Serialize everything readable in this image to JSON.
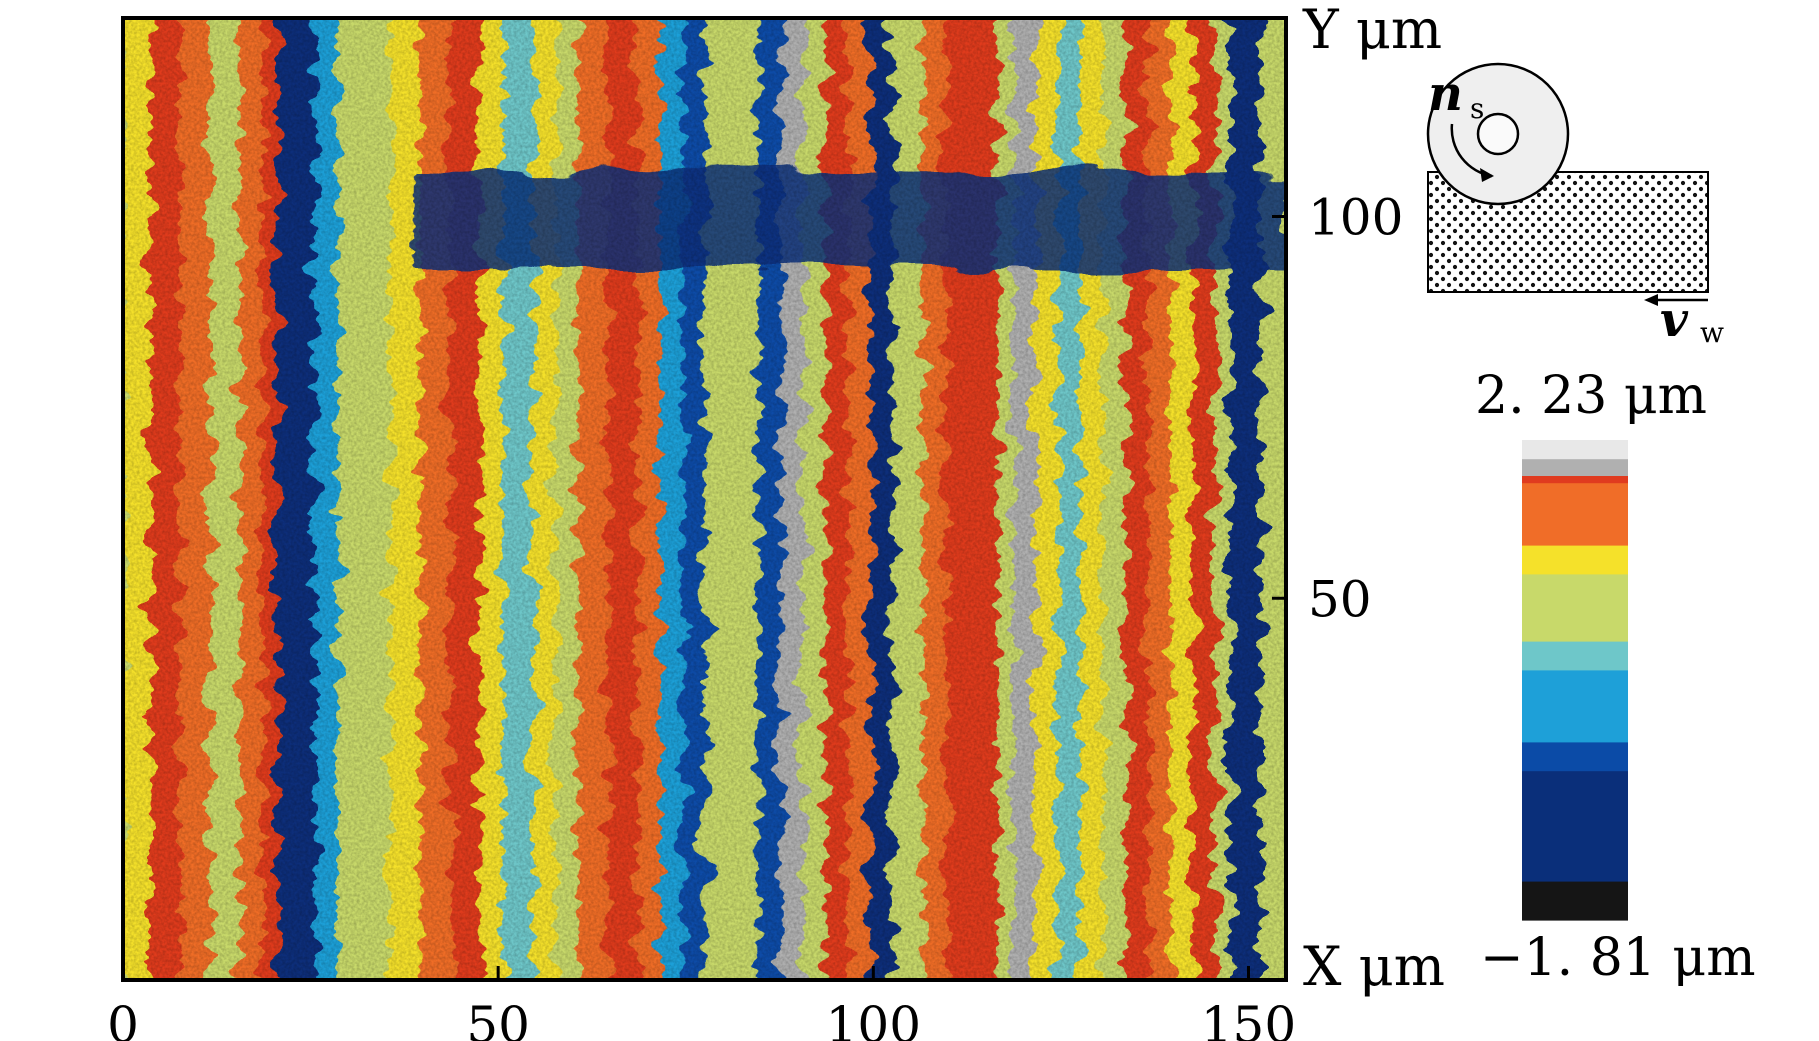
{
  "chart_data": {
    "type": "heatmap",
    "x_axis": {
      "label": "X μm",
      "range": [
        0,
        155
      ],
      "ticks": [
        0,
        50,
        100,
        150
      ]
    },
    "y_axis": {
      "label": "Y μm",
      "range": [
        0,
        126
      ],
      "ticks": [
        50,
        100
      ]
    },
    "colorbar": {
      "max_label": "2. 23 μm",
      "min_label": "−1. 81 μm",
      "max": 2.23,
      "min": -1.81,
      "colors": [
        "#e8e8e8",
        "#b0b0b0",
        "#e03b1f",
        "#f06d28",
        "#f5e12a",
        "#c8d96a",
        "#6ec7c9",
        "#1ea0d8",
        "#0b4ba7",
        "#0a2f7a",
        "#151515"
      ]
    },
    "schematic": {
      "wheel_speed_label": "n",
      "wheel_speed_sub": "s",
      "work_speed_label": "v",
      "work_speed_sub": "w"
    },
    "stripes": [
      {
        "x": 0,
        "value": 0.55
      },
      {
        "x": 4,
        "value": 1.55
      },
      {
        "x": 8,
        "value": 0.95
      },
      {
        "x": 12,
        "value": 0.4
      },
      {
        "x": 16,
        "value": 1.1
      },
      {
        "x": 19,
        "value": 1.45
      },
      {
        "x": 21,
        "value": -1.35
      },
      {
        "x": 26,
        "value": -0.4
      },
      {
        "x": 29,
        "value": 0.35
      },
      {
        "x": 32,
        "value": 0.1
      },
      {
        "x": 36,
        "value": 0.65
      },
      {
        "x": 40,
        "value": 1.05
      },
      {
        "x": 44,
        "value": 1.4
      },
      {
        "x": 48,
        "value": 0.6
      },
      {
        "x": 51,
        "value": -0.15
      },
      {
        "x": 55,
        "value": 0.55
      },
      {
        "x": 58,
        "value": 0.2
      },
      {
        "x": 61,
        "value": 1.2
      },
      {
        "x": 65,
        "value": 1.55
      },
      {
        "x": 69,
        "value": 0.85
      },
      {
        "x": 72,
        "value": -0.55
      },
      {
        "x": 75,
        "value": -1.2
      },
      {
        "x": 78,
        "value": 0.4
      },
      {
        "x": 82,
        "value": 0.05
      },
      {
        "x": 85,
        "value": -1.0
      },
      {
        "x": 88,
        "value": 1.7
      },
      {
        "x": 91,
        "value": 0.3
      },
      {
        "x": 94,
        "value": 1.35
      },
      {
        "x": 97,
        "value": 1.05
      },
      {
        "x": 100,
        "value": -1.3
      },
      {
        "x": 103,
        "value": 0.2
      },
      {
        "x": 107,
        "value": 0.9
      },
      {
        "x": 110,
        "value": 1.6
      },
      {
        "x": 114,
        "value": 1.25
      },
      {
        "x": 117,
        "value": 0.3
      },
      {
        "x": 119,
        "value": 1.85
      },
      {
        "x": 122,
        "value": 0.5
      },
      {
        "x": 125,
        "value": -0.3
      },
      {
        "x": 128,
        "value": 0.7
      },
      {
        "x": 131,
        "value": 0.15
      },
      {
        "x": 134,
        "value": 1.3
      },
      {
        "x": 137,
        "value": 1.0
      },
      {
        "x": 140,
        "value": 0.55
      },
      {
        "x": 143,
        "value": 1.45
      },
      {
        "x": 146,
        "value": 0.1
      },
      {
        "x": 148,
        "value": -1.25
      },
      {
        "x": 152,
        "value": 0.25
      }
    ],
    "horizontal_band": {
      "y_range": [
        93,
        106
      ],
      "value": -1.25
    }
  }
}
